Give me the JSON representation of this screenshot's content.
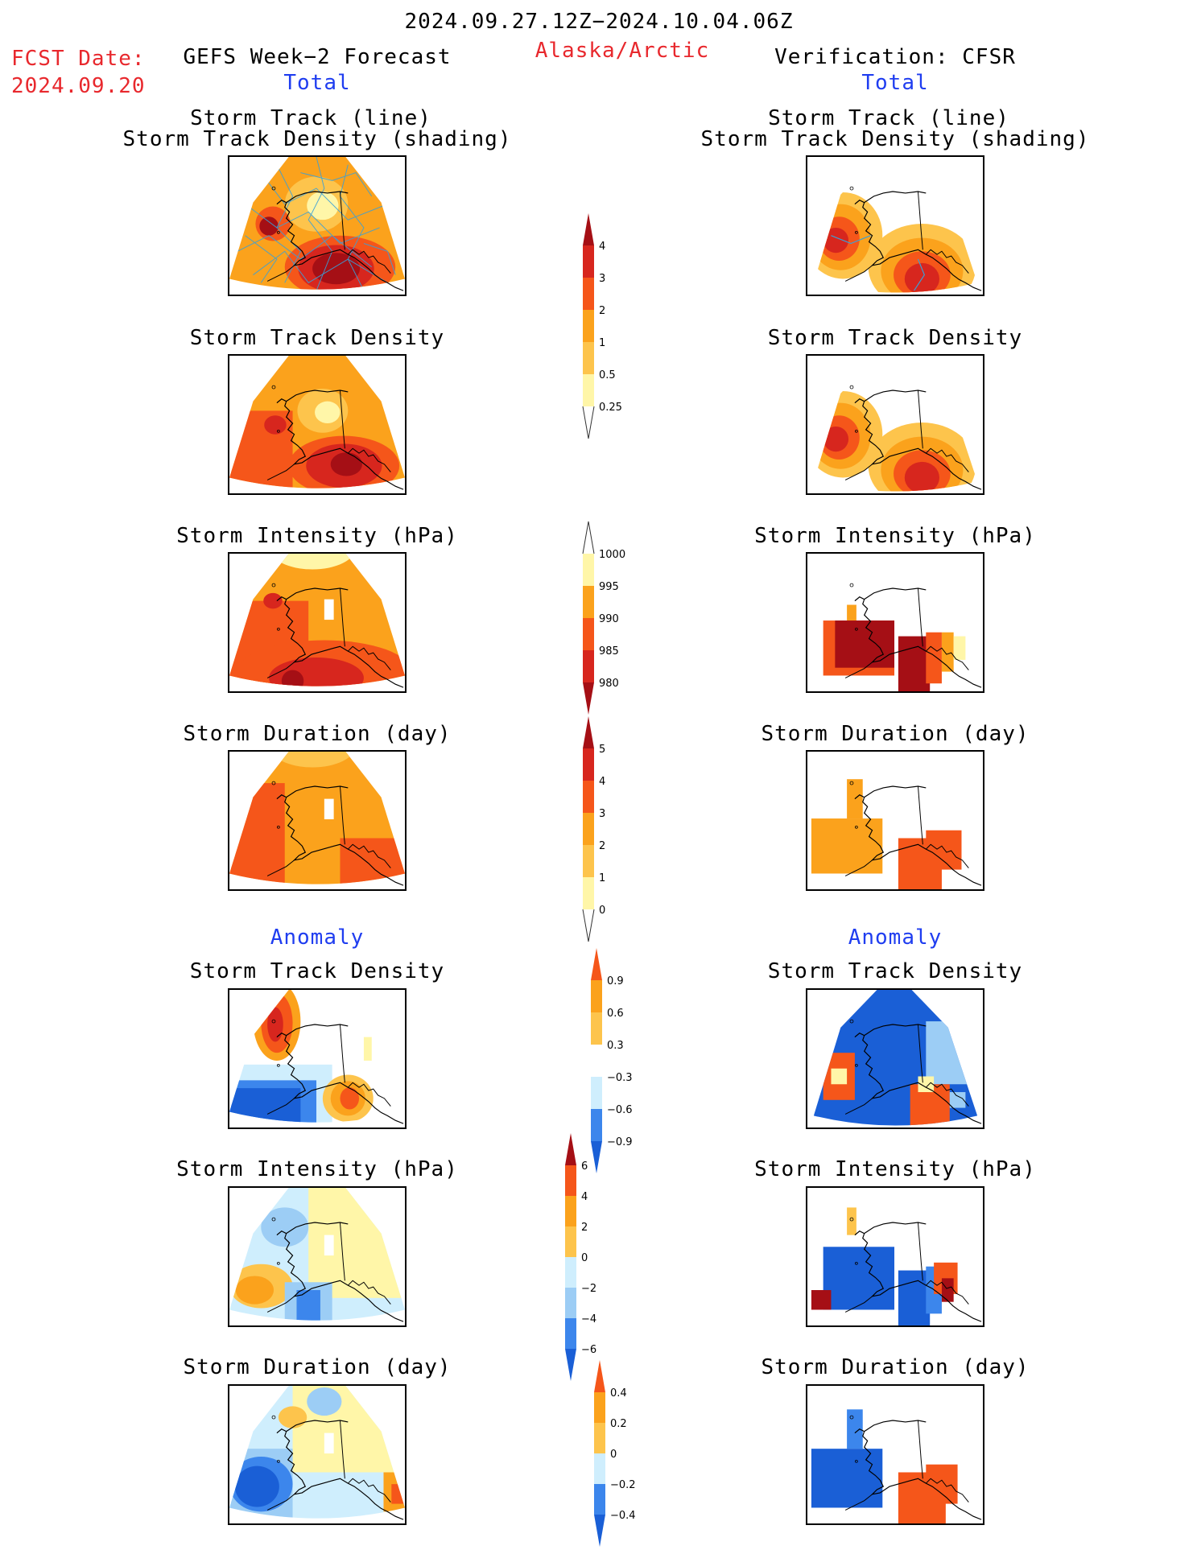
{
  "header": {
    "date_range": "2024.09.27.12Z−2024.10.04.06Z",
    "fcst_label": "FCST Date:",
    "fcst_date": "2024.09.20",
    "left_title": "GEFS Week−2 Forecast",
    "region": "Alaska/Arctic",
    "right_title": "Verification: CFSR",
    "total_label": "Total",
    "anomaly_label": "Anomaly"
  },
  "panels": {
    "track_line_title_1": "Storm Track (line)",
    "track_line_title_2": "Storm Track Density (shading)",
    "density": "Storm Track Density",
    "intensity": "Storm Intensity (hPa)",
    "duration": "Storm Duration (day)"
  },
  "colorbars": {
    "density_total": [
      "4",
      "3",
      "2",
      "1",
      "0.5",
      "0.25"
    ],
    "intensity_total": [
      "1000",
      "995",
      "990",
      "985",
      "980"
    ],
    "duration_total": [
      "5",
      "4",
      "3",
      "2",
      "1",
      "0"
    ],
    "density_anom": [
      "0.9",
      "0.6",
      "0.3",
      "−0.3",
      "−0.6",
      "−0.9"
    ],
    "intensity_anom": [
      "6",
      "4",
      "2",
      "0",
      "−2",
      "−4",
      "−6"
    ],
    "duration_anom": [
      "0.4",
      "0.2",
      "0",
      "−0.2",
      "−0.4"
    ]
  },
  "colors": {
    "dark_red": "#a50f15",
    "red": "#d7261e",
    "orange_red": "#f5561a",
    "orange": "#fba21c",
    "light_orange": "#fdc44c",
    "pale_yellow": "#fff6a8",
    "dark_blue": "#1a5fd6",
    "blue": "#3c86ec",
    "light_blue": "#9ccdf5",
    "pale_blue": "#cfeefd",
    "track_line": "#3aa0d8"
  }
}
